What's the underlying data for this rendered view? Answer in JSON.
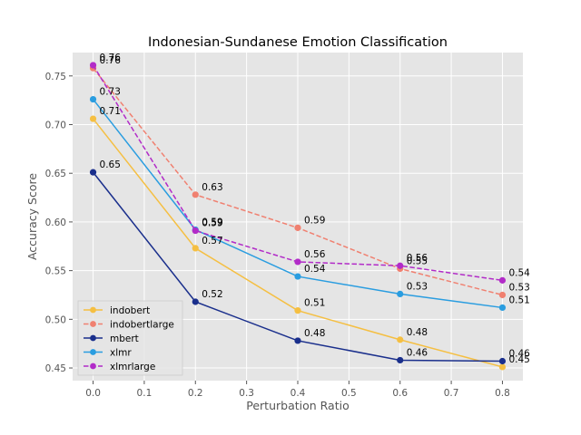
{
  "chart_data": {
    "type": "line",
    "title": "Indonesian-Sundanese Emotion Classification",
    "xlabel": "Perturbation Ratio",
    "ylabel": "Accuracy Score",
    "x": [
      0.0,
      0.2,
      0.4,
      0.6,
      0.8
    ],
    "xlim": [
      -0.04,
      0.84
    ],
    "ylim": [
      0.437,
      0.774
    ],
    "x_ticks": [
      "0.0",
      "0.1",
      "0.2",
      "0.3",
      "0.4",
      "0.5",
      "0.6",
      "0.7",
      "0.8"
    ],
    "y_ticks": [
      "0.45",
      "0.50",
      "0.55",
      "0.60",
      "0.65",
      "0.70",
      "0.75"
    ],
    "grid": true,
    "legend_position": "lower-left",
    "background": "#e5e5e5",
    "series": [
      {
        "name": "indobert",
        "color": "#f5bf42",
        "dashed": false,
        "values": [
          0.706,
          0.573,
          0.509,
          0.479,
          0.451
        ],
        "labels": [
          "0.71",
          "0.57",
          "0.51",
          "0.48",
          "0.45"
        ]
      },
      {
        "name": "indobertlarge",
        "color": "#f08070",
        "dashed": true,
        "values": [
          0.758,
          0.628,
          0.594,
          0.552,
          0.525
        ],
        "labels": [
          "0.76",
          "0.63",
          "0.59",
          "0.55",
          "0.53"
        ]
      },
      {
        "name": "mbert",
        "color": "#1a2f8c",
        "dashed": false,
        "values": [
          0.651,
          0.518,
          0.478,
          0.458,
          0.457
        ],
        "labels": [
          "0.65",
          "0.52",
          "0.48",
          "0.46",
          "0.46"
        ]
      },
      {
        "name": "xlmr",
        "color": "#2a9de0",
        "dashed": false,
        "values": [
          0.726,
          0.592,
          0.544,
          0.526,
          0.512
        ],
        "labels": [
          "0.73",
          "0.59",
          "0.54",
          "0.53",
          "0.51"
        ]
      },
      {
        "name": "xlmrlarge",
        "color": "#b22bc8",
        "dashed": true,
        "values": [
          0.761,
          0.591,
          0.559,
          0.555,
          0.54
        ],
        "labels": [
          "0.76",
          "0.59",
          "0.56",
          "0.56",
          "0.54"
        ]
      }
    ]
  }
}
